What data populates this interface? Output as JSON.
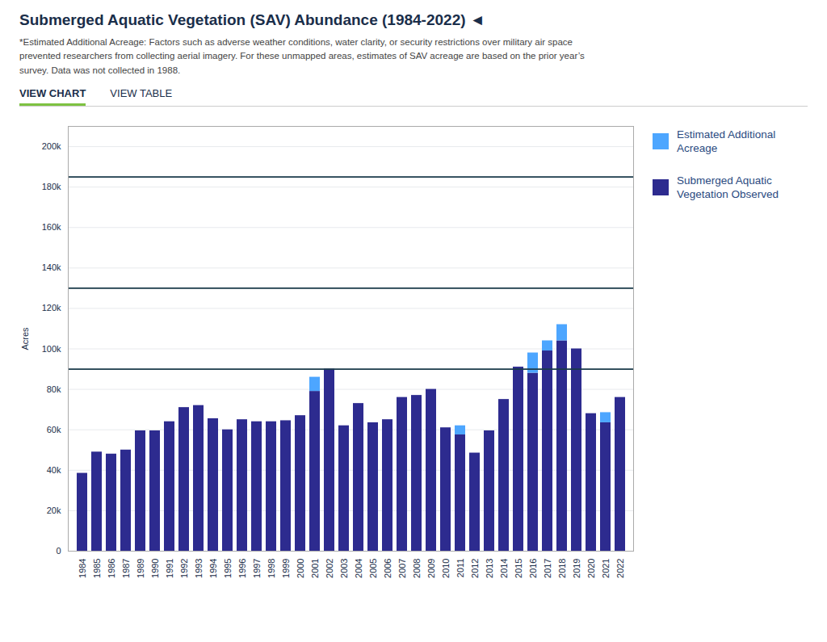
{
  "chart_data": {
    "type": "bar",
    "title": "Submerged Aquatic Vegetation (SAV) Abundance (1984-2022)  ◄",
    "subtitle": [
      "*Estimated Additional Acreage: Factors such as adverse weather conditions, water clarity, or security restrictions over military air space",
      "prevented researchers from collecting aerial imagery. For these unmapped areas, estimates of SAV acreage are based on the prior year’s",
      "survey. Data was not collected in 1988."
    ],
    "annotations": [
      "VIEW CHART",
      "VIEW TABLE"
    ],
    "ylabel": "Acres",
    "categories": [
      "1984",
      "1985",
      "1986",
      "1987",
      "1989",
      "1990",
      "1991",
      "1992",
      "1993",
      "1994",
      "1995",
      "1996",
      "1997",
      "1998",
      "1999",
      "2000",
      "2001",
      "2002",
      "2003",
      "2004",
      "2005",
      "2006",
      "2007",
      "2008",
      "2009",
      "2010",
      "2011",
      "2012",
      "2013",
      "2014",
      "2015",
      "2016",
      "2017",
      "2018",
      "2019",
      "2020",
      "2021",
      "2022"
    ],
    "series": [
      {
        "name": "Submerged Aquatic\nVegetation Observed",
        "color": "#2d2b8f",
        "values": [
          38500,
          49000,
          48000,
          50000,
          59500,
          59500,
          64000,
          71000,
          72000,
          65500,
          60000,
          65000,
          64000,
          64000,
          64500,
          67000,
          79000,
          90000,
          62000,
          73000,
          63500,
          65000,
          76000,
          77000,
          80000,
          61000,
          57500,
          48500,
          59500,
          75000,
          91000,
          88000,
          99000,
          104000,
          100000,
          68000,
          63500,
          76000
        ]
      },
      {
        "name": "Estimated Additional\nAcreage",
        "color": "#4da6ff",
        "values": [
          0,
          0,
          0,
          0,
          0,
          0,
          0,
          0,
          0,
          0,
          0,
          0,
          0,
          0,
          0,
          0,
          7000,
          0,
          0,
          0,
          0,
          0,
          0,
          0,
          0,
          0,
          4500,
          0,
          0,
          0,
          0,
          10000,
          5000,
          8000,
          0,
          0,
          5000,
          0
        ]
      }
    ],
    "stacked": true,
    "reference_lines": {
      "values": [
        185000,
        130000,
        90000
      ],
      "color": "#1a3a4a"
    },
    "ylim": [
      0,
      210000
    ],
    "yticks": [
      0,
      {
        "value": 20000,
        "label": "20k"
      },
      {
        "value": 40000,
        "label": "40k"
      },
      {
        "value": 60000,
        "label": "60k"
      },
      {
        "value": 80000,
        "label": "80k"
      },
      {
        "value": 100000,
        "label": "100k"
      },
      {
        "value": 120000,
        "label": "120k"
      },
      {
        "value": 140000,
        "label": "140k"
      },
      {
        "value": 160000,
        "label": "160k"
      },
      {
        "value": 180000,
        "label": "180k"
      },
      {
        "value": 200000,
        "label": "200k"
      }
    ],
    "grid": true,
    "legend": "right"
  }
}
